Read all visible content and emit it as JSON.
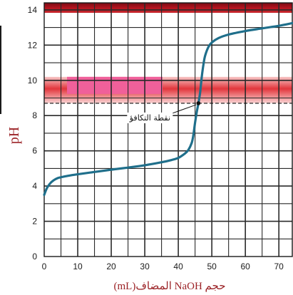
{
  "chart_data": {
    "type": "line",
    "xlabel": "حجم NaOH المضاف(mL)",
    "ylabel": "pH",
    "xlim": [
      0,
      74
    ],
    "ylim": [
      0,
      14.4
    ],
    "x_ticks": [
      0,
      10,
      20,
      30,
      40,
      50,
      60,
      70
    ],
    "y_ticks": [
      0,
      2,
      4,
      6,
      8,
      10,
      12,
      14
    ],
    "grid": true,
    "equivalence_point": {
      "label": "نقطة التكافؤ",
      "x": 46,
      "y": 8.7
    },
    "series": [
      {
        "x": [
          0,
          0.5,
          1,
          2,
          3,
          4,
          5,
          7,
          10,
          15,
          20,
          25,
          30,
          35,
          38,
          40,
          42,
          43,
          44,
          44.5,
          45,
          45.5,
          46,
          46.5,
          47,
          47.5,
          48,
          49,
          50,
          52,
          55,
          60,
          65,
          70,
          74
        ],
        "y": [
          3.5,
          3.75,
          3.95,
          4.2,
          4.35,
          4.45,
          4.5,
          4.58,
          4.67,
          4.8,
          4.93,
          5.05,
          5.18,
          5.35,
          5.48,
          5.6,
          5.85,
          6.05,
          6.45,
          6.9,
          7.6,
          8.2,
          8.7,
          9.3,
          10.2,
          10.9,
          11.4,
          11.9,
          12.15,
          12.4,
          12.6,
          12.8,
          12.95,
          13.1,
          13.25
        ]
      }
    ],
    "bands": [
      {
        "y_from": 8.7,
        "y_to": 10.2,
        "color": "#e2363c"
      }
    ],
    "colors": {
      "curve": "#1f6f8b",
      "top_bar": "#a8131f",
      "band": "#e2363c",
      "highlight": "#f0609a",
      "grid": "#2a2a2a",
      "axis_label": "#9b2226"
    }
  }
}
